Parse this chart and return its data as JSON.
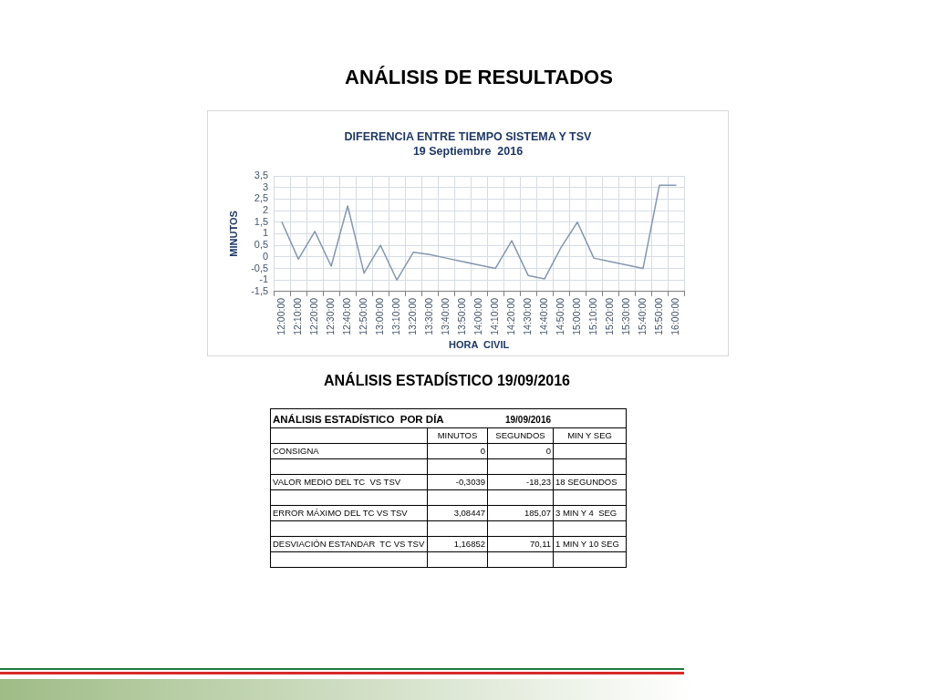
{
  "chart_data": [
    {
      "type": "line",
      "title": "DIFERENCIA ENTRE TIEMPO SISTEMA Y TSV",
      "subtitle": "19 Septiembre  2016",
      "xlabel": "HORA  CIVIL",
      "ylabel": "MINUTOS",
      "annotations": [
        "ANÁLISIS DE RESULTADOS"
      ],
      "categories": [
        "12:00:00",
        "12:10:00",
        "12:20:00",
        "12:30:00",
        "12:40:00",
        "12:50:00",
        "13:00:00",
        "13:10:00",
        "13:20:00",
        "13:30:00",
        "13:40:00",
        "13:50:00",
        "14:00:00",
        "14:10:00",
        "14:20:00",
        "14:30:00",
        "14:40:00",
        "14:50:00",
        "15:00:00",
        "15:10:00",
        "15:20:00",
        "15:30:00",
        "15:40:00",
        "15:50:00",
        "16:00:00"
      ],
      "series": [
        {
          "color": "#8497b0",
          "values": [
            1.5,
            -0.1,
            1.1,
            -0.4,
            2.2,
            -0.7,
            0.5,
            -1.0,
            0.2,
            0.1,
            -0.05,
            -0.2,
            -0.35,
            -0.5,
            0.7,
            -0.8,
            -0.95,
            0.4,
            1.5,
            -0.05,
            -0.2,
            -0.35,
            -0.5,
            3.1,
            3.1
          ]
        }
      ],
      "ylim": [
        -1.5,
        3.5
      ],
      "yticks": [
        {
          "value": -1.5,
          "label": "-1,5"
        },
        -1,
        {
          "value": -0.5,
          "label": "-0,5"
        },
        0,
        {
          "value": 0.5,
          "label": "0,5"
        },
        1,
        {
          "value": 1.5,
          "label": "1,5"
        },
        2,
        {
          "value": 2.5,
          "label": "2,5"
        },
        3,
        {
          "value": 3.5,
          "label": "3,5"
        }
      ],
      "grid": true,
      "legend": false,
      "marker": "none",
      "line_style": "solid"
    },
    {
      "type": "other",
      "title": "ANÁLISIS ESTADÍSTICO 19/09/2016",
      "subtitle": "ANÁLISIS ESTADÍSTICO  POR DÍA",
      "annotations": [
        "19/09/2016"
      ],
      "categories": [
        "MINUTOS",
        "SEGUNDOS",
        "MIN Y SEG"
      ],
      "y_categories": [
        "CONSIGNA",
        null,
        "VALOR MEDIO DEL TC  VS TSV",
        null,
        "ERROR MÁXIMO DEL TC VS TSV",
        null,
        "DESVIACIÓN ESTANDAR  TC VS TSV",
        null
      ],
      "cell_labels": [
        [
          "0",
          "0",
          null
        ],
        [
          null,
          null,
          null
        ],
        [
          "-0,3039",
          "-18,23",
          "18 SEGUNDOS"
        ],
        [
          null,
          null,
          null
        ],
        [
          "3,08447",
          "185,07",
          "3 MIN Y 4  SEG"
        ],
        [
          null,
          null,
          null
        ],
        [
          "1,16852",
          "70,11",
          "1 MIN Y 10 SEG"
        ],
        [
          null,
          null,
          null
        ]
      ]
    }
  ]
}
